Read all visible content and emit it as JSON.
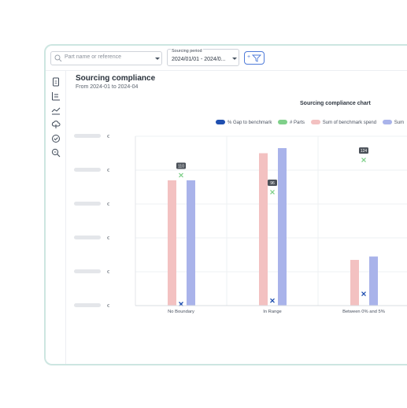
{
  "toolbar": {
    "search_placeholder": "Part name or reference",
    "period_label": "Sourcing period",
    "period_value": "2024/01/01 - 2024/0...",
    "filter_plus": "+"
  },
  "sidebar": {
    "items": [
      {
        "icon": "document-icon"
      },
      {
        "icon": "list-icon"
      },
      {
        "icon": "trend-chart-icon"
      },
      {
        "icon": "cloud-icon"
      },
      {
        "icon": "check-circle-icon",
        "active": true
      },
      {
        "icon": "search-zoom-icon"
      }
    ]
  },
  "page": {
    "title": "Sourcing compliance",
    "subtitle": "From 2024-01 to 2024-04"
  },
  "chart_data": {
    "type": "bar",
    "title": "Sourcing compliance chart",
    "categories": [
      "No Boundary",
      "In Range",
      "Between 0% and 5%"
    ],
    "legend": [
      "% Gap to benchmark",
      "# Parts",
      "Sum of benchmark spend",
      "Sum"
    ],
    "y_tick_labels": [
      "€",
      "€",
      "€",
      "€",
      "€",
      "€"
    ],
    "series": [
      {
        "name": "Sum of benchmark spend",
        "color": "#f3c1c1",
        "values": [
          0.74,
          0.9,
          0.27
        ]
      },
      {
        "name": "Sum",
        "color": "#a9b3ea",
        "values": [
          0.74,
          0.93,
          0.29
        ]
      },
      {
        "name": "# Parts",
        "color": "#7fd08a",
        "marker": "x",
        "values": [
          0.77,
          0.67,
          0.86
        ],
        "labels": [
          "110",
          "96",
          "124"
        ]
      },
      {
        "name": "% Gap to benchmark",
        "color": "#1f4fb0",
        "marker": "x",
        "values": [
          0.0,
          0.02,
          0.06
        ]
      }
    ],
    "colors": {
      "gap": "#1f4fb0",
      "parts": "#7fd08a",
      "bench": "#f3c1c1",
      "sum": "#a9b3ea"
    }
  }
}
